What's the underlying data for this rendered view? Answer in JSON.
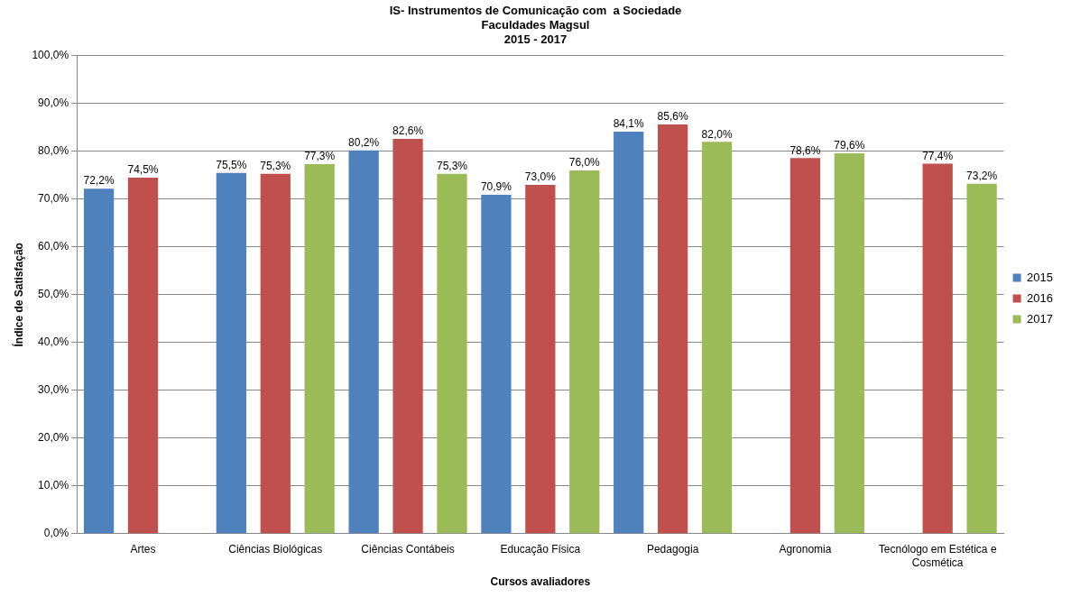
{
  "chart_data": {
    "type": "bar",
    "title": "IS- Instrumentos de Comunicação com  a Sociedade\nFaculdades Magsul\n2015 - 2017",
    "xlabel": "Cursos avaliadores",
    "ylabel": "Índice de Satisfação",
    "categories": [
      "Artes",
      "Ciências Biológicas",
      "Ciências Contábeis",
      "Educação Física",
      "Pedagogia",
      "Agronomia",
      "Tecnólogo em Estética e Cosmética"
    ],
    "series": [
      {
        "name": "2015",
        "color": "#4f81bd",
        "values": [
          72.2,
          75.5,
          80.2,
          70.9,
          84.1,
          null,
          null
        ],
        "value_labels": [
          "72,2%",
          "75,5%",
          "80,2%",
          "70,9%",
          "84,1%",
          null,
          null
        ]
      },
      {
        "name": "2016",
        "color": "#c0504d",
        "values": [
          74.5,
          75.3,
          82.6,
          73.0,
          85.6,
          78.6,
          77.4
        ],
        "value_labels": [
          "74,5%",
          "75,3%",
          "82,6%",
          "73,0%",
          "85,6%",
          "78,6%",
          "77,4%"
        ]
      },
      {
        "name": "2017",
        "color": "#9bbb59",
        "values": [
          null,
          77.3,
          75.3,
          76.0,
          82.0,
          79.6,
          73.2
        ],
        "value_labels": [
          null,
          "77,3%",
          "75,3%",
          "76,0%",
          "82,0%",
          "79,6%",
          "73,2%"
        ]
      }
    ],
    "ylim": [
      0,
      100
    ],
    "yticks": [
      {
        "value": 0,
        "label": "0,0%"
      },
      {
        "value": 10,
        "label": "10,0%"
      },
      {
        "value": 20,
        "label": "20,0%"
      },
      {
        "value": 30,
        "label": "30,0%"
      },
      {
        "value": 40,
        "label": "40,0%"
      },
      {
        "value": 50,
        "label": "50,0%"
      },
      {
        "value": 60,
        "label": "60,0%"
      },
      {
        "value": 70,
        "label": "70,0%"
      },
      {
        "value": 80,
        "label": "80,0%"
      },
      {
        "value": 90,
        "label": "90,0%"
      },
      {
        "value": 100,
        "label": "100,0%"
      }
    ],
    "grid": "y",
    "legend": "right"
  }
}
